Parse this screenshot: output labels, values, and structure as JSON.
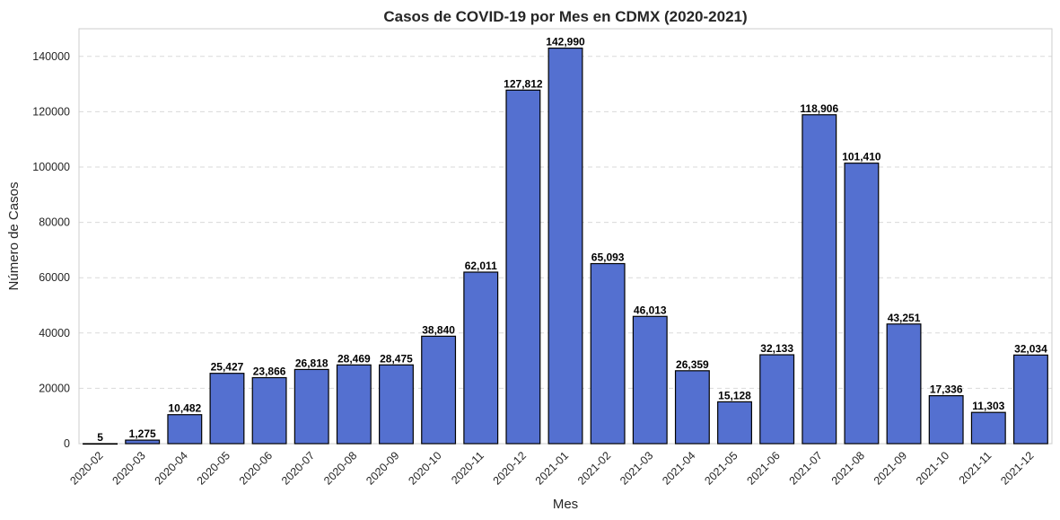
{
  "chart_data": {
    "type": "bar",
    "title": "Casos de COVID-19 por Mes en CDMX (2020-2021)",
    "xlabel": "Mes",
    "ylabel": "Número de Casos",
    "categories": [
      "2020-02",
      "2020-03",
      "2020-04",
      "2020-05",
      "2020-06",
      "2020-07",
      "2020-08",
      "2020-09",
      "2020-10",
      "2020-11",
      "2020-12",
      "2021-01",
      "2021-02",
      "2021-03",
      "2021-04",
      "2021-05",
      "2021-06",
      "2021-07",
      "2021-08",
      "2021-09",
      "2021-10",
      "2021-11",
      "2021-12"
    ],
    "values": [
      5,
      1275,
      10482,
      25427,
      23866,
      26818,
      28469,
      28475,
      38840,
      62011,
      127812,
      142990,
      65093,
      46013,
      26359,
      15128,
      32133,
      118906,
      101410,
      43251,
      17336,
      11303,
      32034
    ],
    "data_labels": [
      "5",
      "1,275",
      "10,482",
      "25,427",
      "23,866",
      "26,818",
      "28,469",
      "28,475",
      "38,840",
      "62,011",
      "127,812",
      "142,990",
      "65,093",
      "46,013",
      "26,359",
      "15,128",
      "32,133",
      "118,906",
      "101,410",
      "43,251",
      "17,336",
      "11,303",
      "32,034"
    ],
    "ylim": [
      0,
      150000
    ],
    "yticks": [
      0,
      20000,
      40000,
      60000,
      80000,
      100000,
      120000,
      140000
    ],
    "ytick_labels": [
      "0",
      "20000",
      "40000",
      "60000",
      "80000",
      "100000",
      "120000",
      "140000"
    ],
    "grid": true,
    "bar_color": "#5470d0",
    "edge_color": "#000000"
  }
}
